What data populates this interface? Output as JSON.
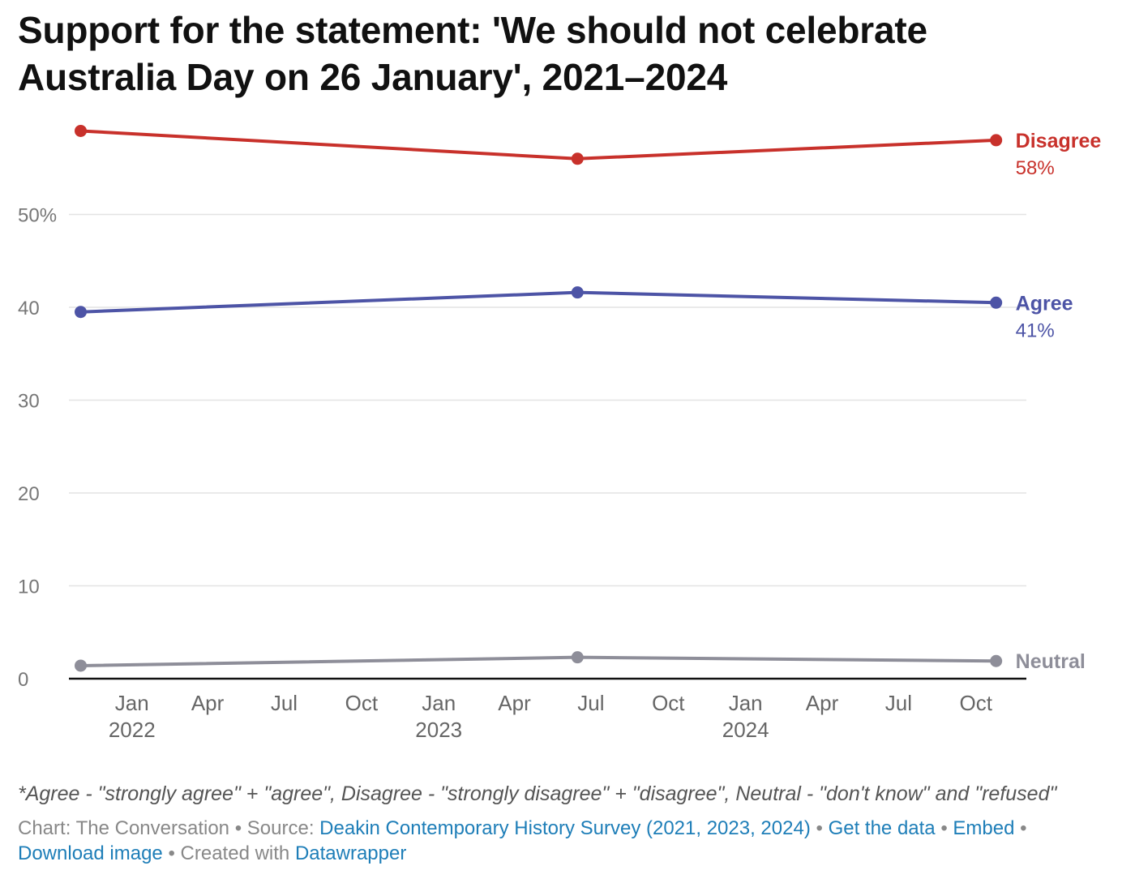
{
  "chart_data": {
    "type": "line",
    "title": "Support for the statement: 'We should not celebrate Australia Day on 26 January', 2021–2024",
    "xlabel": "",
    "ylabel": "",
    "ylim": [
      0,
      60
    ],
    "yticks": [
      {
        "value": 50,
        "label": "50%"
      },
      {
        "value": 40,
        "label": "40"
      },
      {
        "value": 30,
        "label": "30"
      },
      {
        "value": 20,
        "label": "20"
      },
      {
        "value": 10,
        "label": "10"
      },
      {
        "value": 0,
        "label": "0"
      }
    ],
    "xlim": [
      "2021-10-18",
      "2024-11-30"
    ],
    "xticks": [
      {
        "date": "2022-01-01",
        "label": "Jan",
        "year": "2022"
      },
      {
        "date": "2022-04-01",
        "label": "Apr",
        "year": ""
      },
      {
        "date": "2022-07-01",
        "label": "Jul",
        "year": ""
      },
      {
        "date": "2022-10-01",
        "label": "Oct",
        "year": ""
      },
      {
        "date": "2023-01-01",
        "label": "Jan",
        "year": "2023"
      },
      {
        "date": "2023-04-01",
        "label": "Apr",
        "year": ""
      },
      {
        "date": "2023-07-01",
        "label": "Jul",
        "year": ""
      },
      {
        "date": "2023-10-01",
        "label": "Oct",
        "year": ""
      },
      {
        "date": "2024-01-01",
        "label": "Jan",
        "year": "2024"
      },
      {
        "date": "2024-04-01",
        "label": "Apr",
        "year": ""
      },
      {
        "date": "2024-07-01",
        "label": "Jul",
        "year": ""
      },
      {
        "date": "2024-10-01",
        "label": "Oct",
        "year": ""
      }
    ],
    "x": [
      "2021-11-01",
      "2023-06-15",
      "2024-10-25"
    ],
    "grid": true,
    "legend": "direct labels at right end of lines",
    "series": [
      {
        "name": "Disagree",
        "end_label": "58%",
        "color": "#c8312b",
        "values": [
          59,
          56,
          58
        ]
      },
      {
        "name": "Agree",
        "end_label": "41%",
        "color": "#4d54a6",
        "values": [
          39.5,
          41.6,
          40.5
        ]
      },
      {
        "name": "Neutral",
        "end_label": "",
        "color": "#8e8e99",
        "values": [
          1.4,
          2.3,
          1.9
        ]
      }
    ]
  },
  "note": "*Agree - \"strongly agree\" + \"agree\", Disagree - \"strongly disagree\" + \"disagree\", Neutral - \"don't know\" and \"refused\"",
  "footer": {
    "chart_prefix": "Chart: The Conversation",
    "source_prefix": "Source:",
    "source_link": "Deakin Contemporary History Survey (2021, 2023, 2024)",
    "get_data": "Get the data",
    "embed": "Embed",
    "download": "Download image",
    "created_prefix": "Created with",
    "created_link": "Datawrapper",
    "separator": "•"
  },
  "colors": {
    "link": "#1e7eb8",
    "grid": "#e3e3e3",
    "axis": "#111111"
  }
}
